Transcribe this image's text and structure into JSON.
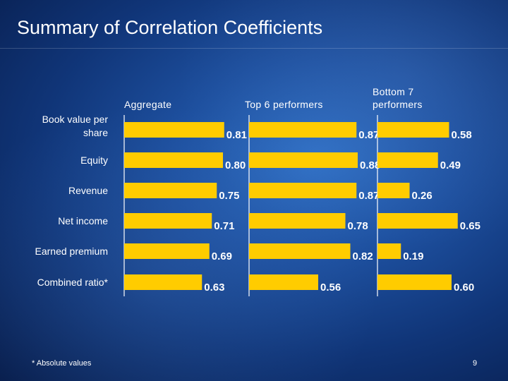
{
  "slide": {
    "title": "Summary of Correlation Coefficients",
    "footnote": "*  Absolute values",
    "page_number": "9"
  },
  "colors": {
    "bar": "#ffcc00",
    "text": "#ffffff",
    "background": "#143e86"
  },
  "chart_data": {
    "type": "bar",
    "orientation": "horizontal",
    "title": "",
    "xlabel": "",
    "ylabel": "",
    "xlim": [
      0,
      1
    ],
    "grid": false,
    "legend": "none",
    "categories": [
      "Book value per share",
      "Equity",
      "Revenue",
      "Net income",
      "Earned premium",
      "Combined ratio*"
    ],
    "series": [
      {
        "name": "Aggregate",
        "values": [
          0.81,
          0.8,
          0.75,
          0.71,
          0.69,
          0.63
        ]
      },
      {
        "name": "Top 6 performers",
        "values": [
          0.87,
          0.88,
          0.87,
          0.78,
          0.82,
          0.56
        ]
      },
      {
        "name": "Bottom 7 performers",
        "values": [
          0.58,
          0.49,
          0.26,
          0.65,
          0.19,
          0.6
        ]
      }
    ]
  }
}
